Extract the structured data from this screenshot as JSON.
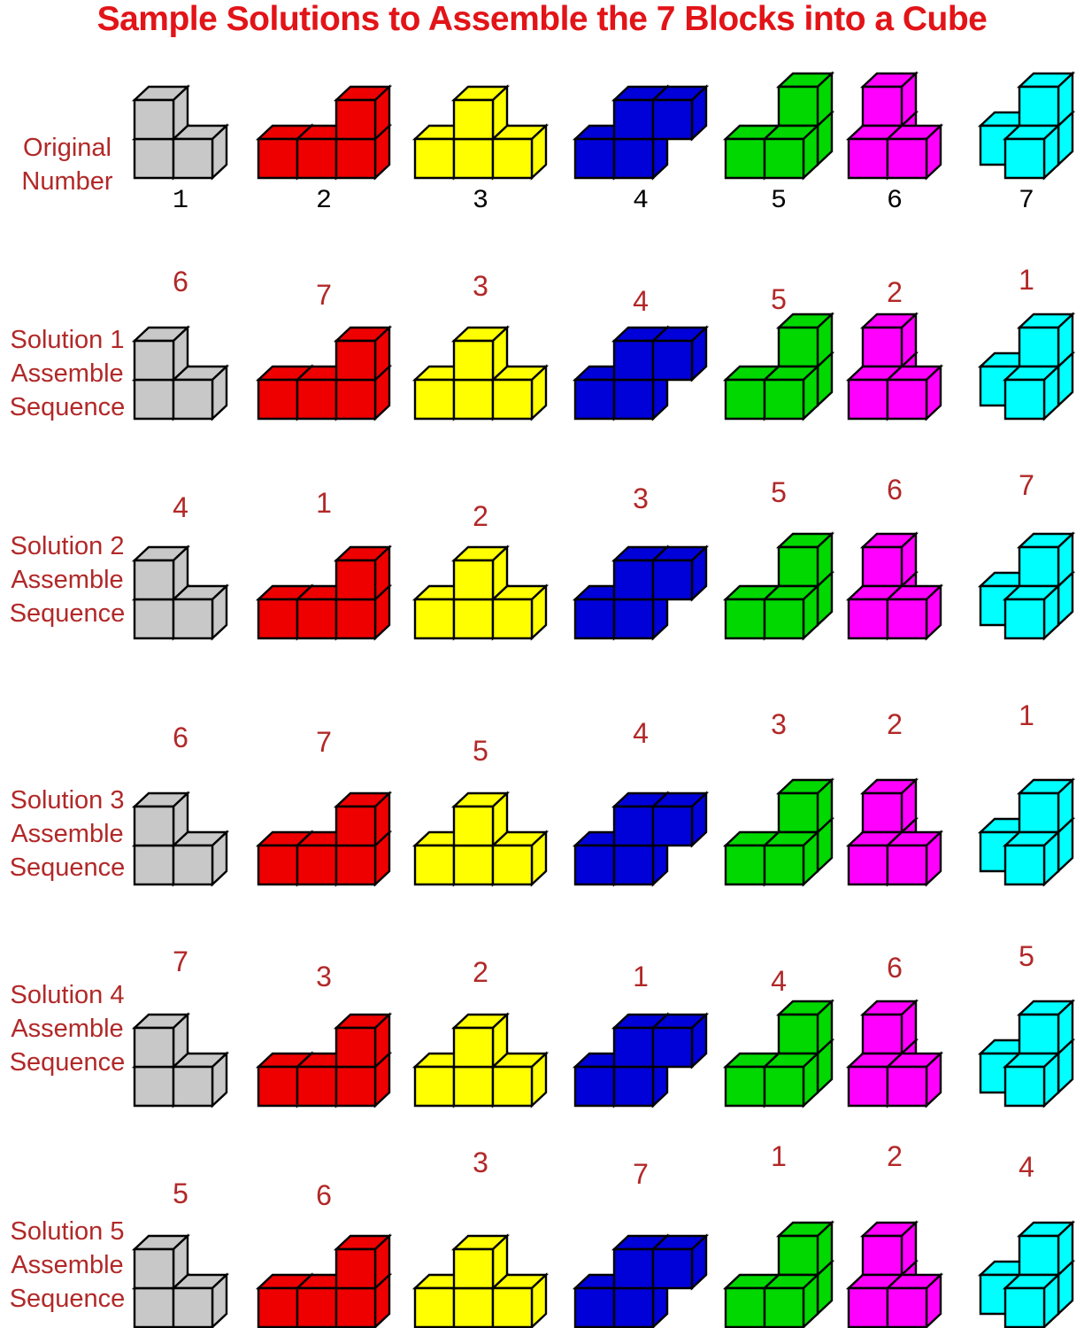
{
  "title": {
    "text": "Sample Solutions to Assemble the 7 Blocks into a Cube"
  },
  "colors": {
    "background": "#ffffff",
    "title_red": "#e21418",
    "label_dark_red": "#b22828",
    "sequence_number_red": "#b22828",
    "original_number_black": "#000000",
    "block_outline": "#000000"
  },
  "blocks": [
    {
      "number": "1",
      "color_name": "gray",
      "hex": "#c8c8c8",
      "cubes": [
        [
          0,
          0,
          0
        ],
        [
          1,
          0,
          0
        ],
        [
          0,
          1,
          0
        ]
      ]
    },
    {
      "number": "2",
      "color_name": "red",
      "hex": "#ee0000",
      "cubes": [
        [
          0,
          0,
          0
        ],
        [
          1,
          0,
          0
        ],
        [
          2,
          0,
          0
        ],
        [
          2,
          1,
          0
        ]
      ]
    },
    {
      "number": "3",
      "color_name": "yellow",
      "hex": "#ffff00",
      "cubes": [
        [
          0,
          0,
          0
        ],
        [
          1,
          0,
          0
        ],
        [
          2,
          0,
          0
        ],
        [
          1,
          1,
          0
        ]
      ]
    },
    {
      "number": "4",
      "color_name": "blue",
      "hex": "#0000d8",
      "cubes": [
        [
          0,
          0,
          0
        ],
        [
          1,
          0,
          0
        ],
        [
          1,
          1,
          0
        ],
        [
          2,
          1,
          0
        ]
      ]
    },
    {
      "number": "5",
      "color_name": "green",
      "hex": "#00d800",
      "cubes": [
        [
          0,
          0,
          0
        ],
        [
          1,
          0,
          0
        ],
        [
          1,
          0,
          1
        ],
        [
          1,
          1,
          1
        ]
      ]
    },
    {
      "number": "6",
      "color_name": "magenta",
      "hex": "#ff00ff",
      "cubes": [
        [
          0,
          0,
          0
        ],
        [
          1,
          0,
          0
        ],
        [
          0,
          0,
          1
        ],
        [
          0,
          1,
          1
        ]
      ]
    },
    {
      "number": "7",
      "color_name": "cyan",
      "hex": "#00ffff",
      "cubes": [
        [
          1,
          0,
          0
        ],
        [
          0,
          0,
          1
        ],
        [
          1,
          0,
          1
        ],
        [
          1,
          1,
          1
        ]
      ]
    }
  ],
  "original_row": {
    "label_lines": [
      "Original",
      "Number"
    ],
    "numbers": [
      "1",
      "2",
      "3",
      "4",
      "5",
      "6",
      "7"
    ]
  },
  "solutions": [
    {
      "label_lines": [
        "Solution 1",
        "Assemble",
        "Sequence"
      ],
      "sequence": [
        "6",
        "7",
        "3",
        "4",
        "5",
        "2",
        "1"
      ]
    },
    {
      "label_lines": [
        "Solution 2",
        "Assemble",
        "Sequence"
      ],
      "sequence": [
        "4",
        "1",
        "2",
        "3",
        "5",
        "6",
        "7"
      ]
    },
    {
      "label_lines": [
        "Solution 3",
        "Assemble",
        "Sequence"
      ],
      "sequence": [
        "6",
        "7",
        "5",
        "4",
        "3",
        "2",
        "1"
      ]
    },
    {
      "label_lines": [
        "Solution 4",
        "Assemble",
        "Sequence"
      ],
      "sequence": [
        "7",
        "3",
        "2",
        "1",
        "4",
        "6",
        "5"
      ]
    },
    {
      "label_lines": [
        "Solution 5",
        "Assemble",
        "Sequence"
      ],
      "sequence": [
        "5",
        "6",
        "3",
        "7",
        "1",
        "2",
        "4"
      ]
    }
  ]
}
